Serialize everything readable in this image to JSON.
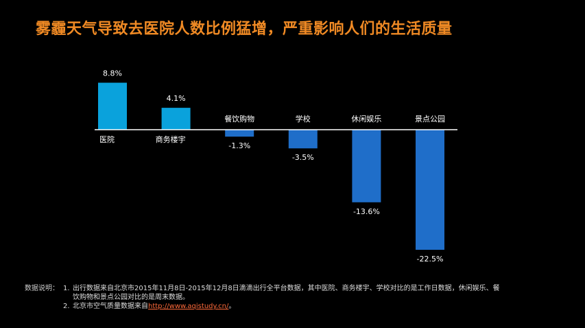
{
  "title": "雾霾天气导致去医院人数比例猛增，严重影响人们的生活质量",
  "chart_data": {
    "type": "bar",
    "categories": [
      "医院",
      "商务楼宇",
      "餐饮购物",
      "学校",
      "休闲娱乐",
      "景点公园"
    ],
    "values": [
      8.8,
      4.1,
      -1.3,
      -3.5,
      -13.6,
      -22.5
    ],
    "value_labels": [
      "8.8%",
      "4.1%",
      "-1.3%",
      "-3.5%",
      "-13.6%",
      "-22.5%"
    ],
    "unit": "%",
    "colors": {
      "positive": "#0aa2dc",
      "negative": "#1f6ec9",
      "axis": "#ffffff"
    }
  },
  "notes": {
    "label": "数据说明：",
    "items": [
      {
        "num": "1.",
        "text": "出行数据来自北京市2015年11月8日-2015年12月8日滴滴出行全平台数据，其中医院、商务楼宇、学校对比的是工作日数据，休闲娱乐、餐饮购物和景点公园对比的是周末数据。"
      },
      {
        "num": "2.",
        "text": "北京市空气质量数据来自",
        "link": "http://www.aqistudy.cn/",
        "suffix": "。"
      }
    ]
  }
}
